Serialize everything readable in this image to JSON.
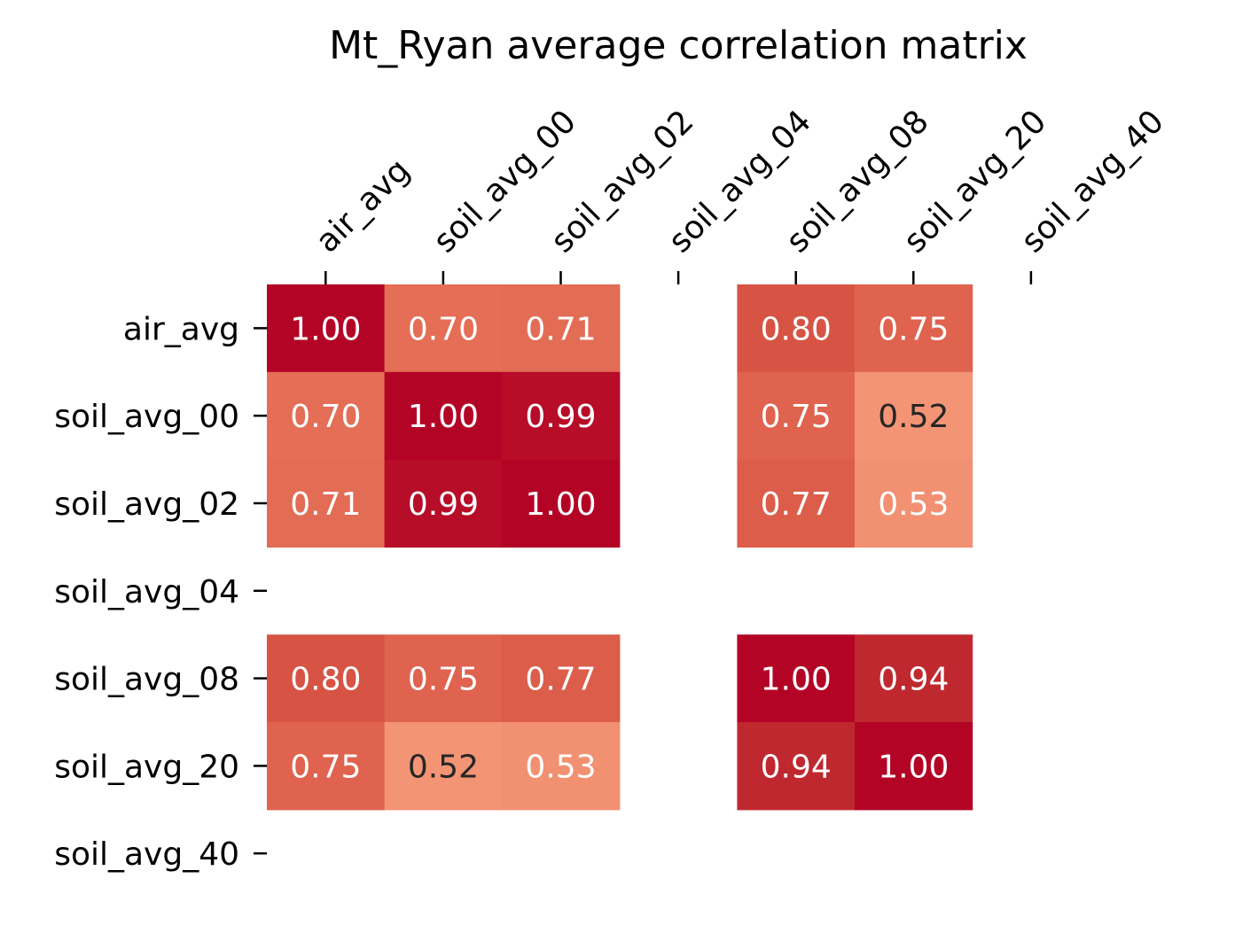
{
  "chart_data": {
    "type": "heatmap",
    "title": "Mt_Ryan average correlation matrix",
    "x_labels": [
      "air_avg",
      "soil_avg_00",
      "soil_avg_02",
      "soil_avg_04",
      "soil_avg_08",
      "soil_avg_20",
      "soil_avg_40"
    ],
    "y_labels": [
      "air_avg",
      "soil_avg_00",
      "soil_avg_02",
      "soil_avg_04",
      "soil_avg_08",
      "soil_avg_20",
      "soil_avg_40"
    ],
    "values": [
      [
        1.0,
        0.7,
        0.71,
        null,
        0.8,
        0.75,
        null
      ],
      [
        0.7,
        1.0,
        0.99,
        null,
        0.75,
        0.52,
        null
      ],
      [
        0.71,
        0.99,
        1.0,
        null,
        0.77,
        0.53,
        null
      ],
      [
        null,
        null,
        null,
        null,
        null,
        null,
        null
      ],
      [
        0.8,
        0.75,
        0.77,
        null,
        1.0,
        0.94,
        null
      ],
      [
        0.75,
        0.52,
        0.53,
        null,
        0.94,
        1.0,
        null
      ],
      [
        null,
        null,
        null,
        null,
        null,
        null,
        null
      ]
    ],
    "value_labels": [
      [
        "1.00",
        "0.70",
        "0.71",
        "",
        "0.80",
        "0.75",
        ""
      ],
      [
        "0.70",
        "1.00",
        "0.99",
        "",
        "0.75",
        "0.52",
        ""
      ],
      [
        "0.71",
        "0.99",
        "1.00",
        "",
        "0.77",
        "0.53",
        ""
      ],
      [
        "",
        "",
        "",
        "",
        "",
        "",
        ""
      ],
      [
        "0.80",
        "0.75",
        "0.77",
        "",
        "1.00",
        "0.94",
        ""
      ],
      [
        "0.75",
        "0.52",
        "0.53",
        "",
        "0.94",
        "1.00",
        ""
      ],
      [
        "",
        "",
        "",
        "",
        "",
        "",
        ""
      ]
    ],
    "colormap": "coolwarm-red",
    "x_axis_position": "top",
    "colorbar": false,
    "colors": {
      "cell_by_value": {
        "1.00": "#b40426",
        "0.99": "#b70d28",
        "0.94": "#c0282f",
        "0.80": "#d75445",
        "0.77": "#dc5d4a",
        "0.75": "#df634e",
        "0.71": "#e36c55",
        "0.70": "#e46e56",
        "0.53": "#f29072",
        "0.52": "#f39475"
      },
      "text_light": "#ffffff",
      "text_dark": "#262626"
    },
    "dark_text_values": [
      0.52
    ]
  }
}
